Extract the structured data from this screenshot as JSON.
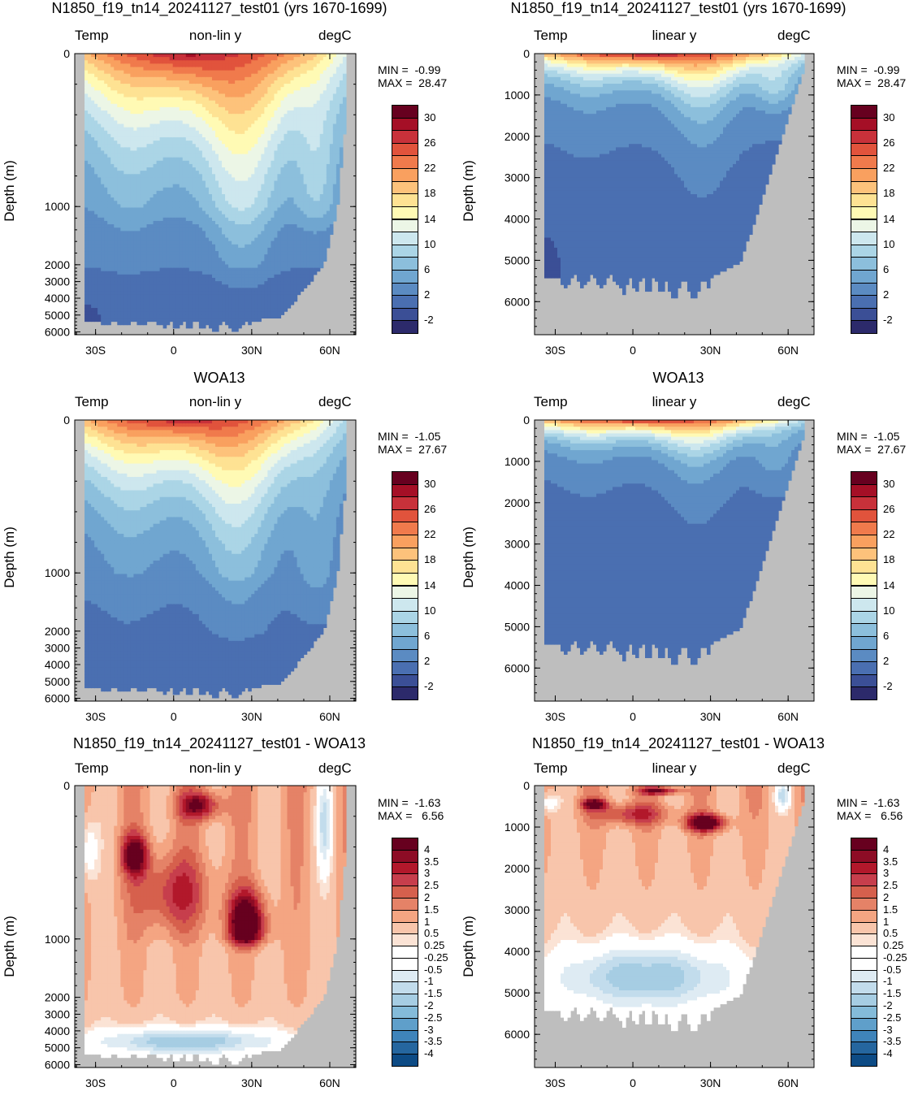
{
  "panels": [
    {
      "title": "N1850_f19_tn14_20241127_test01 (yrs 1670-1699)",
      "left_label": "Temp",
      "center_label": "non-lin y",
      "right_label": "degC",
      "ylabel": "Depth (m)",
      "min_text": "MIN =  -0.99",
      "max_text": "MAX =  28.47",
      "scale": "nonlin",
      "kind": "temp",
      "field": "model",
      "yticks": [
        "0",
        "1000",
        "2000",
        "3000",
        "4000",
        "5000",
        "6000"
      ],
      "xticks": [
        "30S",
        "0",
        "30N",
        "60N"
      ]
    },
    {
      "title": "N1850_f19_tn14_20241127_test01 (yrs 1670-1699)",
      "left_label": "Temp",
      "center_label": "linear y",
      "right_label": "degC",
      "ylabel": "Depth (m)",
      "min_text": "MIN =  -0.99",
      "max_text": "MAX =  28.47",
      "scale": "linear",
      "kind": "temp",
      "field": "model",
      "yticks": [
        "0",
        "1000",
        "2000",
        "3000",
        "4000",
        "5000",
        "6000"
      ],
      "xticks": [
        "30S",
        "0",
        "30N",
        "60N"
      ]
    },
    {
      "title": "WOA13",
      "left_label": "Temp",
      "center_label": "non-lin y",
      "right_label": "degC",
      "ylabel": "Depth (m)",
      "min_text": "MIN =  -1.05",
      "max_text": "MAX =  27.67",
      "scale": "nonlin",
      "kind": "temp",
      "field": "obs",
      "yticks": [
        "0",
        "1000",
        "2000",
        "3000",
        "4000",
        "5000",
        "6000"
      ],
      "xticks": [
        "30S",
        "0",
        "30N",
        "60N"
      ]
    },
    {
      "title": "WOA13",
      "left_label": "Temp",
      "center_label": "linear y",
      "right_label": "degC",
      "ylabel": "Depth (m)",
      "min_text": "MIN =  -1.05",
      "max_text": "MAX =  27.67",
      "scale": "linear",
      "kind": "temp",
      "field": "obs",
      "yticks": [
        "0",
        "1000",
        "2000",
        "3000",
        "4000",
        "5000",
        "6000"
      ],
      "xticks": [
        "30S",
        "0",
        "30N",
        "60N"
      ]
    },
    {
      "title": "N1850_f19_tn14_20241127_test01 - WOA13",
      "left_label": "Temp",
      "center_label": "non-lin y",
      "right_label": "degC",
      "ylabel": "Depth (m)",
      "min_text": "MIN =  -1.63",
      "max_text": "MAX =   6.56",
      "scale": "nonlin",
      "kind": "diff",
      "field": "diff",
      "yticks": [
        "0",
        "1000",
        "2000",
        "3000",
        "4000",
        "5000",
        "6000"
      ],
      "xticks": [
        "30S",
        "0",
        "30N",
        "60N"
      ]
    },
    {
      "title": "N1850_f19_tn14_20241127_test01 - WOA13",
      "left_label": "Temp",
      "center_label": "linear y",
      "right_label": "degC",
      "ylabel": "Depth (m)",
      "min_text": "MIN =  -1.63",
      "max_text": "MAX =   6.56",
      "scale": "linear",
      "kind": "diff",
      "field": "diff",
      "yticks": [
        "0",
        "1000",
        "2000",
        "3000",
        "4000",
        "5000",
        "6000"
      ],
      "xticks": [
        "30S",
        "0",
        "30N",
        "60N"
      ]
    }
  ],
  "colorbars": {
    "temp": {
      "labels": [
        "30",
        "26",
        "22",
        "18",
        "14",
        "10",
        "6",
        "2",
        "-2"
      ],
      "colors": [
        "#67001f",
        "#a50f26",
        "#c8313a",
        "#e1533c",
        "#f07a4c",
        "#f9a05f",
        "#fdc27b",
        "#fee293",
        "#fffab4",
        "#ecf6e6",
        "#cde7ee",
        "#abd5e6",
        "#8cbfdc",
        "#70a6d0",
        "#5b8bc2",
        "#4a6fb1",
        "#3b4f96",
        "#2c2a6b"
      ]
    },
    "diff": {
      "labels": [
        "4",
        "3.5",
        "3",
        "2.5",
        "2",
        "1.5",
        "1",
        "0.5",
        "0.25",
        "-0.25",
        "-0.5",
        "-1",
        "-1.5",
        "-2",
        "-2.5",
        "-3",
        "-3.5",
        "-4"
      ],
      "colors": [
        "#67001f",
        "#8d0c25",
        "#b2182b",
        "#c73e4c",
        "#d6604d",
        "#e58267",
        "#f4a582",
        "#f8c5ab",
        "#fbe3d5",
        "#ffffff",
        "#ffffff",
        "#deebf3",
        "#c2dcec",
        "#a6cde3",
        "#84bbd9",
        "#5f9fca",
        "#3f84ba",
        "#25669f",
        "#0d4b85"
      ]
    }
  },
  "chart_data": [
    {
      "type": "heatmap",
      "title": "N1850_f19_tn14_20241127_test01 (yrs 1670-1699)",
      "variable": "Temp",
      "units": "degC",
      "yscale": "non-lin y",
      "ylabel": "Depth (m)",
      "xticks": [
        "30S",
        "0",
        "30N",
        "60N"
      ],
      "xlim": [
        -38,
        70
      ],
      "ylim": [
        6500,
        0
      ],
      "contour_levels": [
        -2,
        0,
        2,
        4,
        6,
        8,
        10,
        12,
        14,
        16,
        18,
        20,
        22,
        24,
        26,
        28,
        30
      ],
      "min": -0.99,
      "max": 28.47
    },
    {
      "type": "heatmap",
      "title": "N1850_f19_tn14_20241127_test01 (yrs 1670-1699)",
      "variable": "Temp",
      "units": "degC",
      "yscale": "linear y",
      "ylabel": "Depth (m)",
      "xticks": [
        "30S",
        "0",
        "30N",
        "60N"
      ],
      "xlim": [
        -38,
        70
      ],
      "ylim": [
        6800,
        0
      ],
      "contour_levels": [
        -2,
        0,
        2,
        4,
        6,
        8,
        10,
        12,
        14,
        16,
        18,
        20,
        22,
        24,
        26,
        28,
        30
      ],
      "min": -0.99,
      "max": 28.47
    },
    {
      "type": "heatmap",
      "title": "WOA13",
      "variable": "Temp",
      "units": "degC",
      "yscale": "non-lin y",
      "ylabel": "Depth (m)",
      "xticks": [
        "30S",
        "0",
        "30N",
        "60N"
      ],
      "xlim": [
        -38,
        70
      ],
      "ylim": [
        6500,
        0
      ],
      "contour_levels": [
        -2,
        0,
        2,
        4,
        6,
        8,
        10,
        12,
        14,
        16,
        18,
        20,
        22,
        24,
        26,
        28,
        30
      ],
      "min": -1.05,
      "max": 27.67
    },
    {
      "type": "heatmap",
      "title": "WOA13",
      "variable": "Temp",
      "units": "degC",
      "yscale": "linear y",
      "ylabel": "Depth (m)",
      "xticks": [
        "30S",
        "0",
        "30N",
        "60N"
      ],
      "xlim": [
        -38,
        70
      ],
      "ylim": [
        6800,
        0
      ],
      "contour_levels": [
        -2,
        0,
        2,
        4,
        6,
        8,
        10,
        12,
        14,
        16,
        18,
        20,
        22,
        24,
        26,
        28,
        30
      ],
      "min": -1.05,
      "max": 27.67
    },
    {
      "type": "heatmap",
      "title": "N1850_f19_tn14_20241127_test01 - WOA13",
      "variable": "Temp",
      "units": "degC",
      "yscale": "non-lin y",
      "ylabel": "Depth (m)",
      "xticks": [
        "30S",
        "0",
        "30N",
        "60N"
      ],
      "xlim": [
        -38,
        70
      ],
      "ylim": [
        6500,
        0
      ],
      "contour_levels": [
        -4,
        -3.5,
        -3,
        -2.5,
        -2,
        -1.5,
        -1,
        -0.5,
        -0.25,
        0.25,
        0.5,
        1,
        1.5,
        2,
        2.5,
        3,
        3.5,
        4
      ],
      "min": -1.63,
      "max": 6.56
    },
    {
      "type": "heatmap",
      "title": "N1850_f19_tn14_20241127_test01 - WOA13",
      "variable": "Temp",
      "units": "degC",
      "yscale": "linear y",
      "ylabel": "Depth (m)",
      "xticks": [
        "30S",
        "0",
        "30N",
        "60N"
      ],
      "xlim": [
        -38,
        70
      ],
      "ylim": [
        6800,
        0
      ],
      "contour_levels": [
        -4,
        -3.5,
        -3,
        -2.5,
        -2,
        -1.5,
        -1,
        -0.5,
        -0.25,
        0.25,
        0.5,
        1,
        1.5,
        2,
        2.5,
        3,
        3.5,
        4
      ],
      "min": -1.63,
      "max": 6.56
    }
  ]
}
